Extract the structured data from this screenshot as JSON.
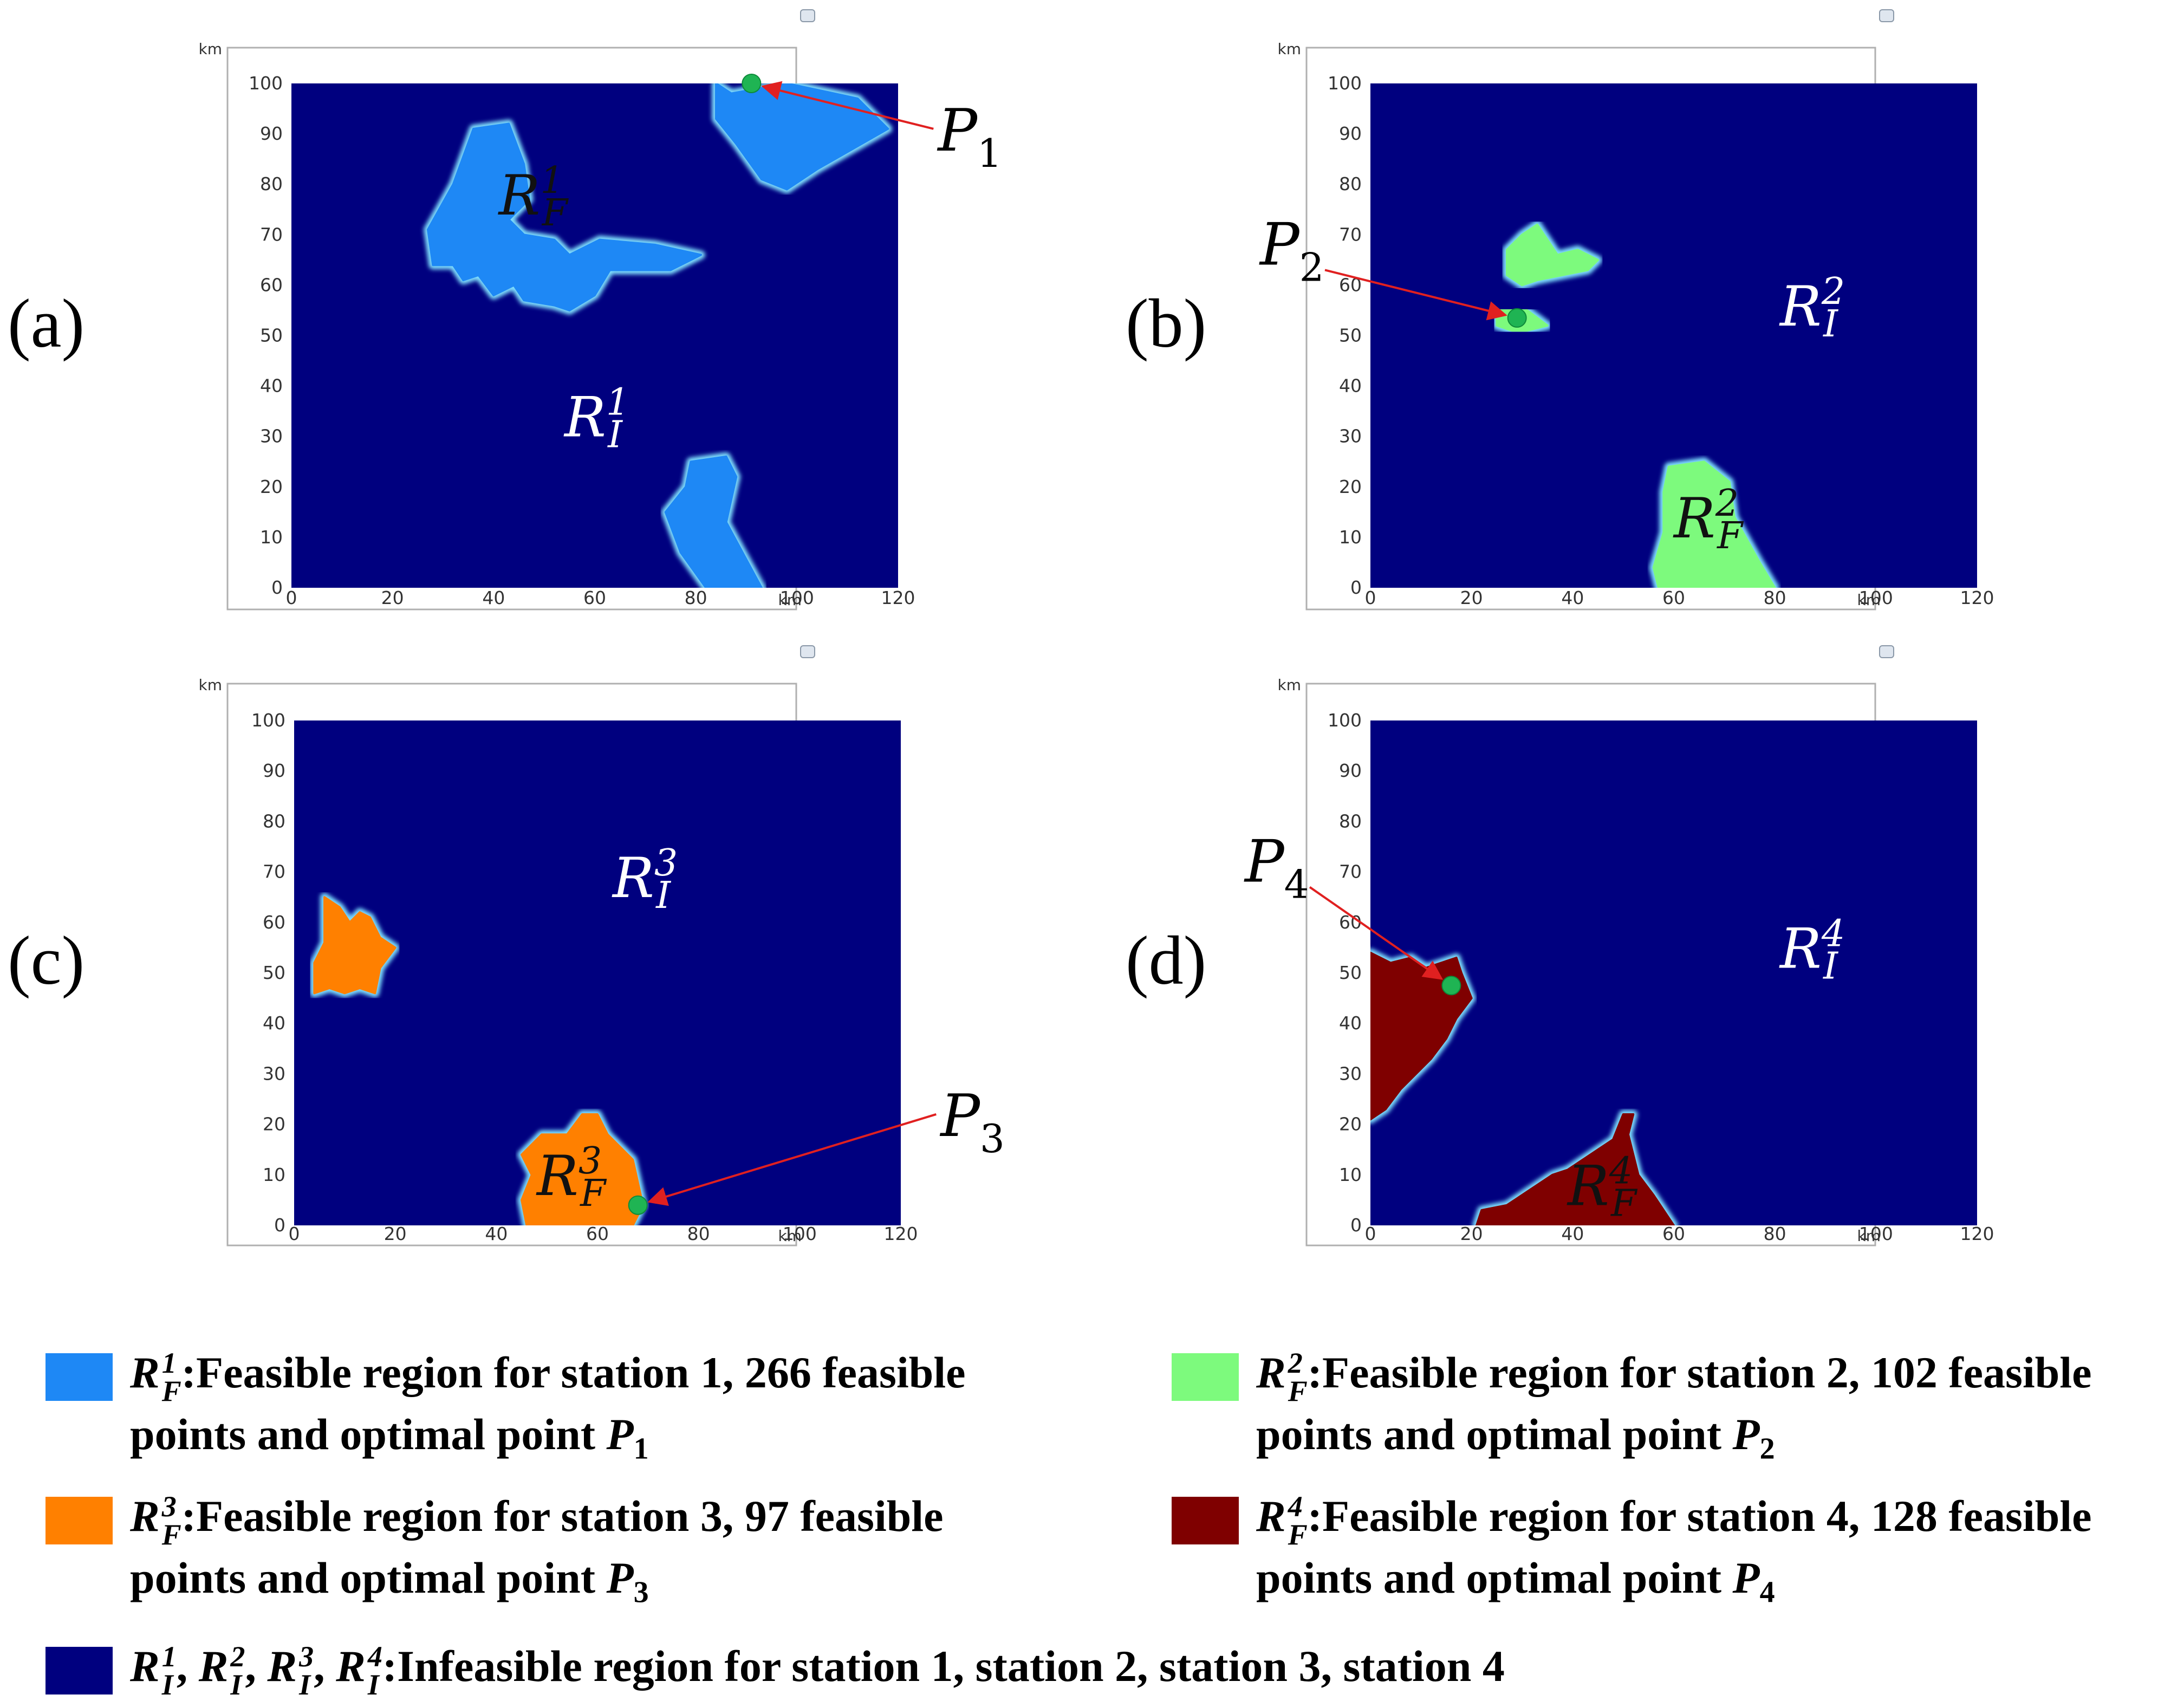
{
  "chart_data": [
    {
      "type": "heatmap",
      "panel_label": "(a)",
      "x_unit": "km",
      "y_unit": "km",
      "xlim": [
        0,
        120
      ],
      "ylim": [
        0,
        100
      ],
      "x_ticks": [
        0,
        20,
        40,
        60,
        80,
        100,
        120
      ],
      "y_ticks": [
        0,
        10,
        20,
        30,
        40,
        50,
        60,
        70,
        80,
        90,
        100
      ],
      "feasible_color": "#1e88f5",
      "infeasible_color": "#00007f",
      "feasible_regions": [
        [
          [
            84,
            100
          ],
          [
            87,
            98
          ],
          [
            98,
            100
          ],
          [
            112,
            97
          ],
          [
            118,
            91
          ],
          [
            104,
            83
          ],
          [
            98,
            79
          ],
          [
            93,
            81
          ],
          [
            88,
            88
          ],
          [
            84,
            93
          ]
        ],
        [
          [
            36,
            91
          ],
          [
            43,
            92
          ],
          [
            46,
            84
          ],
          [
            47,
            77
          ],
          [
            43,
            73
          ],
          [
            46,
            70
          ],
          [
            52,
            69
          ],
          [
            55,
            66
          ],
          [
            61,
            69
          ],
          [
            72,
            68
          ],
          [
            81,
            66
          ],
          [
            75,
            63
          ],
          [
            63,
            63
          ],
          [
            60,
            58
          ],
          [
            55,
            55
          ],
          [
            52,
            56
          ],
          [
            46,
            57
          ],
          [
            44,
            60
          ],
          [
            40,
            58
          ],
          [
            37,
            62
          ],
          [
            34,
            61
          ],
          [
            32,
            64
          ],
          [
            28,
            64
          ],
          [
            27,
            71
          ],
          [
            32,
            80
          ]
        ],
        [
          [
            79,
            25
          ],
          [
            86,
            26
          ],
          [
            88,
            22
          ],
          [
            86,
            13
          ],
          [
            93,
            0
          ],
          [
            82,
            0
          ],
          [
            77,
            7
          ],
          [
            74,
            15
          ],
          [
            78,
            20
          ]
        ]
      ],
      "feasible_label": {
        "base": "R",
        "sup": "1",
        "sub": "F",
        "x": 41,
        "y": 74
      },
      "infeasible_label": {
        "base": "R",
        "sup": "1",
        "sub": "I",
        "x": 54,
        "y": 30
      },
      "optimal_point": {
        "name": "P",
        "sub": "1",
        "x": 91,
        "y": 100,
        "label_x": 127,
        "label_y": 91
      },
      "point_color": "#1fb453",
      "arrow_color": "#e02020"
    },
    {
      "type": "heatmap",
      "panel_label": "(b)",
      "x_unit": "km",
      "y_unit": "km",
      "xlim": [
        0,
        120
      ],
      "ylim": [
        0,
        100
      ],
      "x_ticks": [
        0,
        20,
        40,
        60,
        80,
        100,
        120
      ],
      "y_ticks": [
        0,
        10,
        20,
        30,
        40,
        50,
        60,
        70,
        80,
        90,
        100
      ],
      "feasible_color": "#7dfa7d",
      "infeasible_color": "#00007f",
      "feasible_regions": [
        [
          [
            27,
            67
          ],
          [
            30,
            70
          ],
          [
            33,
            72
          ],
          [
            35,
            69
          ],
          [
            37,
            66
          ],
          [
            41,
            67
          ],
          [
            45,
            65
          ],
          [
            43,
            63
          ],
          [
            38,
            62
          ],
          [
            33,
            61
          ],
          [
            30,
            60
          ],
          [
            27,
            62
          ]
        ],
        [
          [
            25,
            55
          ],
          [
            31,
            55
          ],
          [
            35,
            52
          ],
          [
            31,
            51
          ],
          [
            28,
            51
          ],
          [
            25,
            52
          ]
        ],
        [
          [
            59,
            24
          ],
          [
            66,
            25
          ],
          [
            71,
            21
          ],
          [
            72,
            14
          ],
          [
            77,
            5
          ],
          [
            80,
            0
          ],
          [
            57,
            0
          ],
          [
            56,
            4
          ],
          [
            58,
            11
          ],
          [
            58,
            19
          ]
        ]
      ],
      "feasible_label": {
        "base": "R",
        "sup": "2",
        "sub": "F",
        "x": 60,
        "y": 10
      },
      "infeasible_label": {
        "base": "R",
        "sup": "2",
        "sub": "I",
        "x": 81,
        "y": 52
      },
      "optimal_point": {
        "name": "P",
        "sub": "2",
        "x": 29,
        "y": 53.5,
        "label_x": -9,
        "label_y": 63
      },
      "point_color": "#1fb453",
      "arrow_color": "#e02020"
    },
    {
      "type": "heatmap",
      "panel_label": "(c)",
      "x_unit": "km",
      "y_unit": "km",
      "xlim": [
        0,
        120
      ],
      "ylim": [
        0,
        100
      ],
      "x_ticks": [
        0,
        20,
        40,
        60,
        80,
        100,
        120
      ],
      "y_ticks": [
        0,
        10,
        20,
        30,
        40,
        50,
        60,
        70,
        80,
        90,
        100
      ],
      "feasible_color": "#ff8000",
      "infeasible_color": "#00007f",
      "feasible_regions": [
        [
          [
            6,
            65
          ],
          [
            9,
            63
          ],
          [
            11,
            60
          ],
          [
            13,
            62
          ],
          [
            15,
            61
          ],
          [
            17,
            57
          ],
          [
            20,
            55
          ],
          [
            17,
            51
          ],
          [
            16,
            46
          ],
          [
            13,
            47
          ],
          [
            10,
            46
          ],
          [
            7,
            47
          ],
          [
            4,
            46
          ],
          [
            4,
            52
          ],
          [
            6,
            56
          ]
        ],
        [
          [
            49,
            18
          ],
          [
            54,
            18
          ],
          [
            57,
            22
          ],
          [
            60,
            22
          ],
          [
            62,
            18
          ],
          [
            67,
            13
          ],
          [
            69,
            4
          ],
          [
            67,
            0
          ],
          [
            46,
            0
          ],
          [
            45,
            5
          ],
          [
            47,
            10
          ],
          [
            45,
            14
          ]
        ]
      ],
      "feasible_label": {
        "base": "R",
        "sup": "3",
        "sub": "F",
        "x": 48,
        "y": 6
      },
      "infeasible_label": {
        "base": "R",
        "sup": "3",
        "sub": "I",
        "x": 63,
        "y": 65
      },
      "optimal_point": {
        "name": "P",
        "sub": "3",
        "x": 68,
        "y": 4,
        "label_x": 127,
        "label_y": 22
      },
      "point_color": "#1fb453",
      "arrow_color": "#e02020"
    },
    {
      "type": "heatmap",
      "panel_label": "(d)",
      "x_unit": "km",
      "y_unit": "km",
      "xlim": [
        0,
        120
      ],
      "ylim": [
        0,
        100
      ],
      "x_ticks": [
        0,
        20,
        40,
        60,
        80,
        100,
        120
      ],
      "y_ticks": [
        0,
        10,
        20,
        30,
        40,
        50,
        60,
        70,
        80,
        90,
        100
      ],
      "feasible_color": "#7f0000",
      "infeasible_color": "#00007f",
      "feasible_regions": [
        [
          [
            0,
            54
          ],
          [
            4,
            52
          ],
          [
            8,
            53
          ],
          [
            11,
            51
          ],
          [
            14,
            52
          ],
          [
            17,
            53
          ],
          [
            18,
            50
          ],
          [
            20,
            45
          ],
          [
            17,
            41
          ],
          [
            15,
            37
          ],
          [
            12,
            33
          ],
          [
            9,
            30
          ],
          [
            6,
            27
          ],
          [
            3,
            23
          ],
          [
            0,
            21
          ]
        ],
        [
          [
            21,
            0
          ],
          [
            22,
            3
          ],
          [
            27,
            4
          ],
          [
            30,
            6
          ],
          [
            33,
            8
          ],
          [
            36,
            10
          ],
          [
            39,
            11
          ],
          [
            42,
            13
          ],
          [
            45,
            15
          ],
          [
            48,
            17
          ],
          [
            50,
            22
          ],
          [
            52,
            22
          ],
          [
            51,
            18
          ],
          [
            53,
            10
          ],
          [
            56,
            6
          ],
          [
            60,
            0
          ]
        ]
      ],
      "feasible_label": {
        "base": "R",
        "sup": "4",
        "sub": "F",
        "x": 39,
        "y": 4
      },
      "infeasible_label": {
        "base": "R",
        "sup": "4",
        "sub": "I",
        "x": 81,
        "y": 51
      },
      "optimal_point": {
        "name": "P",
        "sub": "4",
        "x": 16,
        "y": 47.5,
        "label_x": -12,
        "label_y": 67
      },
      "point_color": "#1fb453",
      "arrow_color": "#e02020"
    }
  ],
  "legend": {
    "items": [
      {
        "key": "f1",
        "color": "#1e88f5",
        "sup": "1",
        "sub": "F",
        "text1": ":Feasible region for station 1, 266 feasible",
        "text2": "points and optimal point ",
        "p_sub": "1"
      },
      {
        "key": "f2",
        "color": "#7dfa7d",
        "sup": "2",
        "sub": "F",
        "text1": ":Feasible region for station 2, 102 feasible",
        "text2": "points and optimal point ",
        "p_sub": "2"
      },
      {
        "key": "f3",
        "color": "#ff8000",
        "sup": "3",
        "sub": "F",
        "text1": ":Feasible region for station 3, 97 feasible",
        "text2": "points and optimal point ",
        "p_sub": "3"
      },
      {
        "key": "f4",
        "color": "#7f0000",
        "sup": "4",
        "sub": "F",
        "text1": ":Feasible region for station 4, 128 feasible",
        "text2": "points and optimal point ",
        "p_sub": "4"
      }
    ],
    "infeasible": {
      "color": "#00007f",
      "symbols": [
        {
          "sup": "1",
          "sub": "I"
        },
        {
          "sup": "2",
          "sub": "I"
        },
        {
          "sup": "3",
          "sub": "I"
        },
        {
          "sup": "4",
          "sub": "I"
        }
      ],
      "text": ":Infeasible region for station 1, station 2, station 3, station 4"
    },
    "symbol_base": "R",
    "point_base": "P"
  }
}
